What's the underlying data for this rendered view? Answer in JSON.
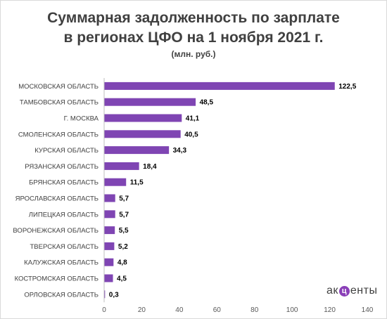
{
  "chart_data": {
    "type": "bar",
    "orientation": "horizontal",
    "title_line1": "Суммарная задолженность по зарплате",
    "title_line2": "в регионах ЦФО  на 1 ноября 2021 г.",
    "subtitle": "(млн. руб.)",
    "categories": [
      "МОСКОВСКАЯ ОБЛАСТЬ",
      "ТАМБОВСКАЯ ОБЛАСТЬ",
      "Г. МОСКВА",
      "СМОЛЕНСКАЯ ОБЛАСТЬ",
      "КУРСКАЯ ОБЛАСТЬ",
      "РЯЗАНСКАЯ ОБЛАСТЬ",
      "БРЯНСКАЯ ОБЛАСТЬ",
      "ЯРОСЛАВСКАЯ ОБЛАСТЬ",
      "ЛИПЕЦКАЯ ОБЛАСТЬ",
      "ВОРОНЕЖСКАЯ ОБЛАСТЬ",
      "ТВЕРСКАЯ ОБЛАСТЬ",
      "КАЛУЖСКАЯ ОБЛАСТЬ",
      "КОСТРОМСКАЯ ОБЛАСТЬ",
      "ОРЛОВСКАЯ ОБЛАСТЬ"
    ],
    "values": [
      122.5,
      48.5,
      41.1,
      40.5,
      34.3,
      18.4,
      11.5,
      5.7,
      5.7,
      5.5,
      5.2,
      4.8,
      4.5,
      0.3
    ],
    "data_labels": [
      "122,5",
      "48,5",
      "41,1",
      "40,5",
      "34,3",
      "18,4",
      "11,5",
      "5,7",
      "5,7",
      "5,5",
      "5,2",
      "4,8",
      "4,5",
      "0,3"
    ],
    "xlim": [
      0,
      140
    ],
    "xticks": [
      "0",
      "20",
      "40",
      "60",
      "80",
      "100",
      "120",
      "140"
    ],
    "xtick_values": [
      0,
      20,
      40,
      60,
      80,
      100,
      120,
      140
    ],
    "grid": false,
    "legend": "none",
    "bar_color": "#7f45b3"
  },
  "brand": {
    "logo_pre": "ак",
    "logo_mark": "ц",
    "logo_post": "енты",
    "logo_accent": "#8a3fb8"
  }
}
